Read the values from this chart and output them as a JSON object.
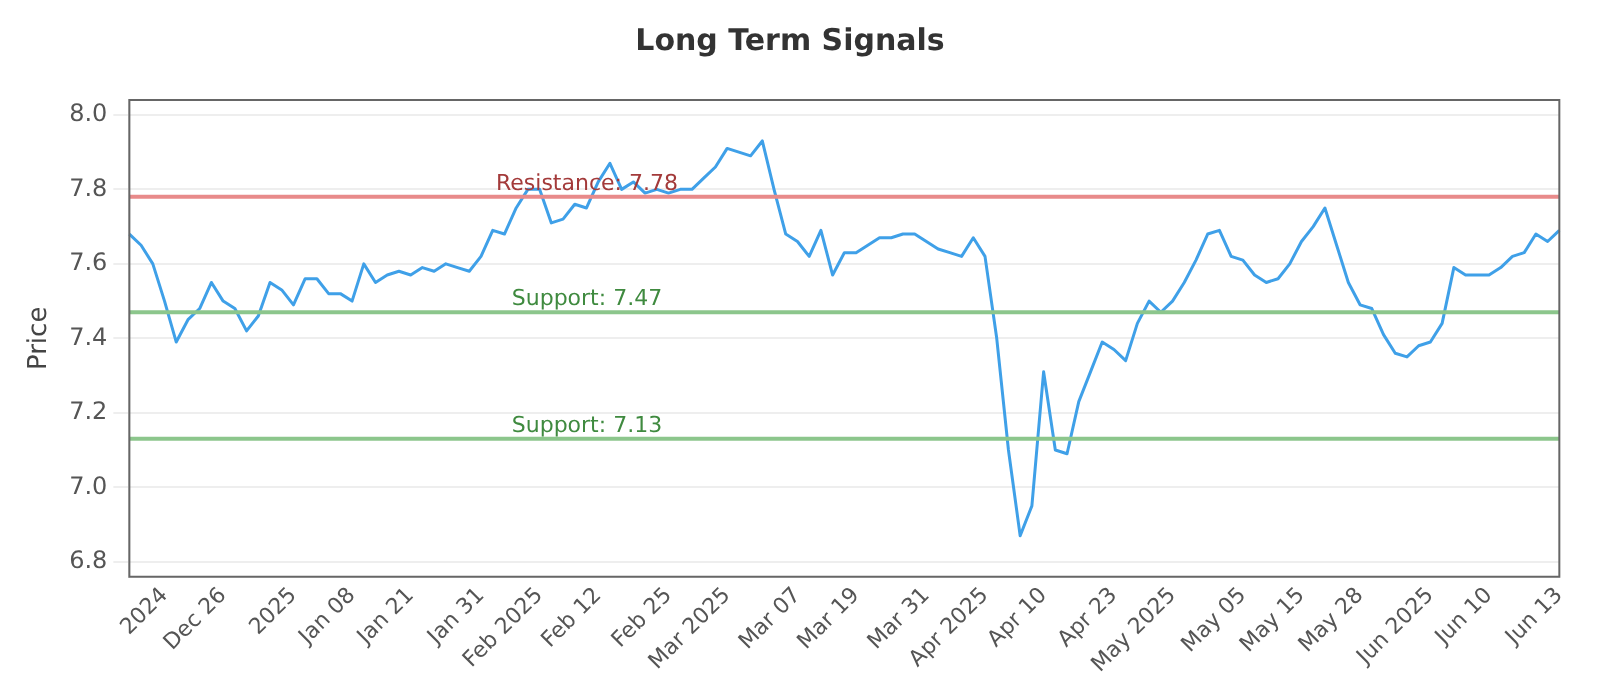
{
  "chart_data": {
    "type": "line",
    "title": "Long Term Signals",
    "ylabel": "Price",
    "categories": [
      null,
      null,
      null,
      "2024",
      null,
      null,
      null,
      null,
      "Dec 26",
      null,
      null,
      null,
      null,
      null,
      "2025",
      null,
      null,
      null,
      null,
      "Jan 08",
      null,
      null,
      null,
      null,
      "Jan 21",
      null,
      null,
      null,
      null,
      null,
      "Jan 31",
      null,
      null,
      null,
      null,
      "Feb 2025",
      null,
      null,
      null,
      null,
      "Feb 12",
      null,
      null,
      null,
      null,
      null,
      "Feb 25",
      null,
      null,
      null,
      null,
      "Mar 2025",
      null,
      null,
      null,
      null,
      null,
      "Mar 07",
      null,
      null,
      null,
      null,
      "Mar 19",
      null,
      null,
      null,
      null,
      null,
      "Mar 31",
      null,
      null,
      null,
      null,
      "Apr 2025",
      null,
      null,
      null,
      null,
      "Apr 10",
      null,
      null,
      null,
      null,
      null,
      "Apr 23",
      null,
      null,
      null,
      null,
      "May 2025",
      null,
      null,
      null,
      null,
      null,
      "May 05",
      null,
      null,
      null,
      null,
      "May 15",
      null,
      null,
      null,
      null,
      "May 28",
      null,
      null,
      null,
      null,
      null,
      "Jun 2025",
      null,
      null,
      null,
      null,
      "Jun 10",
      null,
      null,
      null,
      null,
      null,
      "Jun 13"
    ],
    "series": [
      {
        "color": "#3fa0e8",
        "values": [
          7.68,
          7.65,
          7.6,
          7.5,
          7.39,
          7.45,
          7.48,
          7.55,
          7.5,
          7.48,
          7.42,
          7.46,
          7.55,
          7.53,
          7.49,
          7.56,
          7.56,
          7.52,
          7.52,
          7.5,
          7.6,
          7.55,
          7.57,
          7.58,
          7.57,
          7.59,
          7.58,
          7.6,
          7.59,
          7.58,
          7.62,
          7.69,
          7.68,
          7.75,
          7.8,
          7.8,
          7.71,
          7.72,
          7.76,
          7.75,
          7.82,
          7.87,
          7.8,
          7.82,
          7.79,
          7.8,
          7.79,
          7.8,
          7.8,
          7.83,
          7.86,
          7.91,
          7.9,
          7.89,
          7.93,
          7.8,
          7.68,
          7.66,
          7.62,
          7.69,
          7.57,
          7.63,
          7.63,
          7.65,
          7.67,
          7.67,
          7.68,
          7.68,
          7.66,
          7.64,
          7.63,
          7.62,
          7.67,
          7.62,
          7.4,
          7.1,
          6.87,
          6.95,
          7.31,
          7.1,
          7.09,
          7.23,
          7.31,
          7.39,
          7.37,
          7.34,
          7.44,
          7.5,
          7.47,
          7.5,
          7.55,
          7.61,
          7.68,
          7.69,
          7.62,
          7.61,
          7.57,
          7.55,
          7.56,
          7.6,
          7.66,
          7.7,
          7.75,
          7.65,
          7.55,
          7.49,
          7.48,
          7.41,
          7.36,
          7.35,
          7.38,
          7.39,
          7.44,
          7.59,
          7.57,
          7.57,
          7.57,
          7.59,
          7.62,
          7.63,
          7.68,
          7.66,
          7.69
        ]
      }
    ],
    "ylim": [
      6.76,
      8.04
    ],
    "yticks": [
      {
        "value": 6.8,
        "label": "6.8"
      },
      {
        "value": 7.0,
        "label": "7.0"
      },
      {
        "value": 7.2,
        "label": "7.2"
      },
      {
        "value": 7.4,
        "label": "7.4"
      },
      {
        "value": 7.6,
        "label": "7.6"
      },
      {
        "value": 7.8,
        "label": "7.8"
      },
      {
        "value": 8.0,
        "label": "8.0"
      }
    ],
    "grid": "y",
    "legend": false,
    "marker": "none",
    "line_style": "solid",
    "ref_lines": [
      {
        "axis": "y",
        "value": 7.78,
        "label": "Resistance: 7.78",
        "color": "#e88a8a"
      },
      {
        "axis": "y",
        "value": 7.47,
        "label": "Support: 7.47",
        "color": "#8cc68c"
      },
      {
        "axis": "y",
        "value": 7.13,
        "label": "Support: 7.13",
        "color": "#8cc68c"
      }
    ]
  }
}
